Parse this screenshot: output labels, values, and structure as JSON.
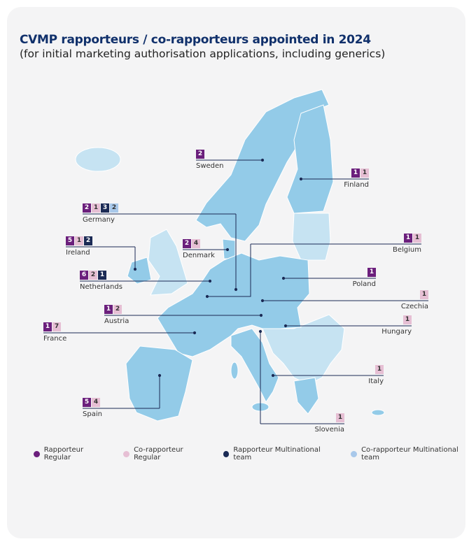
{
  "title": "CVMP rapporteurs / co-rapporteurs appointed in 2024",
  "subtitle": "(for initial marketing authorisation applications, including generics)",
  "colors": {
    "rapporteur_regular": "#6b1f7c",
    "co_rapporteur_regular": "#e6bfd4",
    "rapporteur_multinational": "#1b2a55",
    "co_rapporteur_multinational": "#a8c8ea",
    "eu_country": "#93cbe8",
    "non_eu_country": "#c6e3f2"
  },
  "legend": [
    {
      "key": "rapporteur_regular",
      "label": "Rapporteur Regular"
    },
    {
      "key": "co_rapporteur_regular",
      "label": "Co-rapporteur Regular"
    },
    {
      "key": "rapporteur_multinational",
      "label": "Rapporteur Multinational team"
    },
    {
      "key": "co_rapporteur_multinational",
      "label": "Co-rapporteur Multinational team"
    }
  ],
  "countries": [
    {
      "name": "Sweden",
      "counts": [
        {
          "type": "rapporteur_regular",
          "value": 2
        }
      ]
    },
    {
      "name": "Finland",
      "counts": [
        {
          "type": "rapporteur_regular",
          "value": 1
        },
        {
          "type": "co_rapporteur_regular",
          "value": 1
        }
      ]
    },
    {
      "name": "Germany",
      "counts": [
        {
          "type": "rapporteur_regular",
          "value": 2
        },
        {
          "type": "co_rapporteur_regular",
          "value": 1
        },
        {
          "type": "rapporteur_multinational",
          "value": 3
        },
        {
          "type": "co_rapporteur_multinational",
          "value": 2
        }
      ]
    },
    {
      "name": "Ireland",
      "counts": [
        {
          "type": "rapporteur_regular",
          "value": 5
        },
        {
          "type": "co_rapporteur_regular",
          "value": 1
        },
        {
          "type": "rapporteur_multinational",
          "value": 2
        }
      ]
    },
    {
      "name": "Denmark",
      "counts": [
        {
          "type": "rapporteur_regular",
          "value": 2
        },
        {
          "type": "co_rapporteur_regular",
          "value": 4
        }
      ]
    },
    {
      "name": "Belgium",
      "counts": [
        {
          "type": "rapporteur_regular",
          "value": 1
        },
        {
          "type": "co_rapporteur_regular",
          "value": 1
        }
      ]
    },
    {
      "name": "Netherlands",
      "counts": [
        {
          "type": "rapporteur_regular",
          "value": 6
        },
        {
          "type": "co_rapporteur_regular",
          "value": 2
        },
        {
          "type": "rapporteur_multinational",
          "value": 1
        }
      ]
    },
    {
      "name": "Poland",
      "counts": [
        {
          "type": "rapporteur_regular",
          "value": 1
        }
      ]
    },
    {
      "name": "Czechia",
      "counts": [
        {
          "type": "co_rapporteur_regular",
          "value": 1
        }
      ]
    },
    {
      "name": "Austria",
      "counts": [
        {
          "type": "rapporteur_regular",
          "value": 1
        },
        {
          "type": "co_rapporteur_regular",
          "value": 2
        }
      ]
    },
    {
      "name": "Hungary",
      "counts": [
        {
          "type": "co_rapporteur_regular",
          "value": 1
        }
      ]
    },
    {
      "name": "France",
      "counts": [
        {
          "type": "rapporteur_regular",
          "value": 1
        },
        {
          "type": "co_rapporteur_regular",
          "value": 7
        }
      ]
    },
    {
      "name": "Italy",
      "counts": [
        {
          "type": "co_rapporteur_regular",
          "value": 1
        }
      ]
    },
    {
      "name": "Spain",
      "counts": [
        {
          "type": "rapporteur_regular",
          "value": 5
        },
        {
          "type": "co_rapporteur_regular",
          "value": 4
        }
      ]
    },
    {
      "name": "Slovenia",
      "counts": [
        {
          "type": "co_rapporteur_regular",
          "value": 1
        }
      ]
    }
  ]
}
